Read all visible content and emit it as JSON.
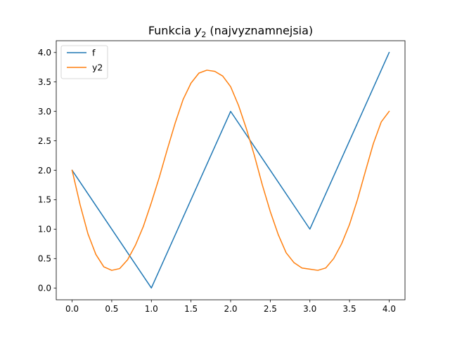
{
  "chart_data": {
    "type": "line",
    "title": {
      "main": "Funkcia ",
      "var": "y",
      "sub": "2",
      "rest": " (najvyznamnejsia)"
    },
    "xlabel": "",
    "ylabel": "",
    "xlim": [
      -0.2,
      4.2
    ],
    "ylim": [
      -0.2,
      4.2
    ],
    "xticks": [
      0.0,
      0.5,
      1.0,
      1.5,
      2.0,
      2.5,
      3.0,
      3.5,
      4.0
    ],
    "xtick_labels": [
      "0.0",
      "0.5",
      "1.0",
      "1.5",
      "2.0",
      "2.5",
      "3.0",
      "3.5",
      "4.0"
    ],
    "yticks": [
      0.0,
      0.5,
      1.0,
      1.5,
      2.0,
      2.5,
      3.0,
      3.5,
      4.0
    ],
    "ytick_labels": [
      "0.0",
      "0.5",
      "1.0",
      "1.5",
      "2.0",
      "2.5",
      "3.0",
      "3.5",
      "4.0"
    ],
    "grid": false,
    "legend_position": "top-left",
    "series": [
      {
        "name": "f",
        "color": "#1f77b4",
        "x": [
          0,
          1,
          2,
          3,
          4
        ],
        "y": [
          2,
          0,
          3,
          1,
          4
        ]
      },
      {
        "name": "y2",
        "color": "#ff7f0e",
        "x": [
          0.0,
          0.1,
          0.2,
          0.3,
          0.4,
          0.5,
          0.6,
          0.7,
          0.8,
          0.9,
          1.0,
          1.1,
          1.2,
          1.3,
          1.4,
          1.5,
          1.6,
          1.7,
          1.8,
          1.9,
          2.0,
          2.1,
          2.2,
          2.3,
          2.4,
          2.5,
          2.6,
          2.7,
          2.8,
          2.9,
          3.0,
          3.1,
          3.2,
          3.3,
          3.4,
          3.5,
          3.6,
          3.7,
          3.8,
          3.9,
          4.0
        ],
        "y": [
          2.0,
          1.42,
          0.92,
          0.57,
          0.36,
          0.3,
          0.33,
          0.48,
          0.73,
          1.05,
          1.45,
          1.88,
          2.35,
          2.8,
          3.2,
          3.48,
          3.65,
          3.7,
          3.68,
          3.6,
          3.42,
          3.1,
          2.7,
          2.25,
          1.75,
          1.3,
          0.91,
          0.6,
          0.43,
          0.34,
          0.32,
          0.3,
          0.34,
          0.5,
          0.75,
          1.08,
          1.5,
          1.98,
          2.45,
          2.82,
          3.0
        ]
      }
    ]
  }
}
